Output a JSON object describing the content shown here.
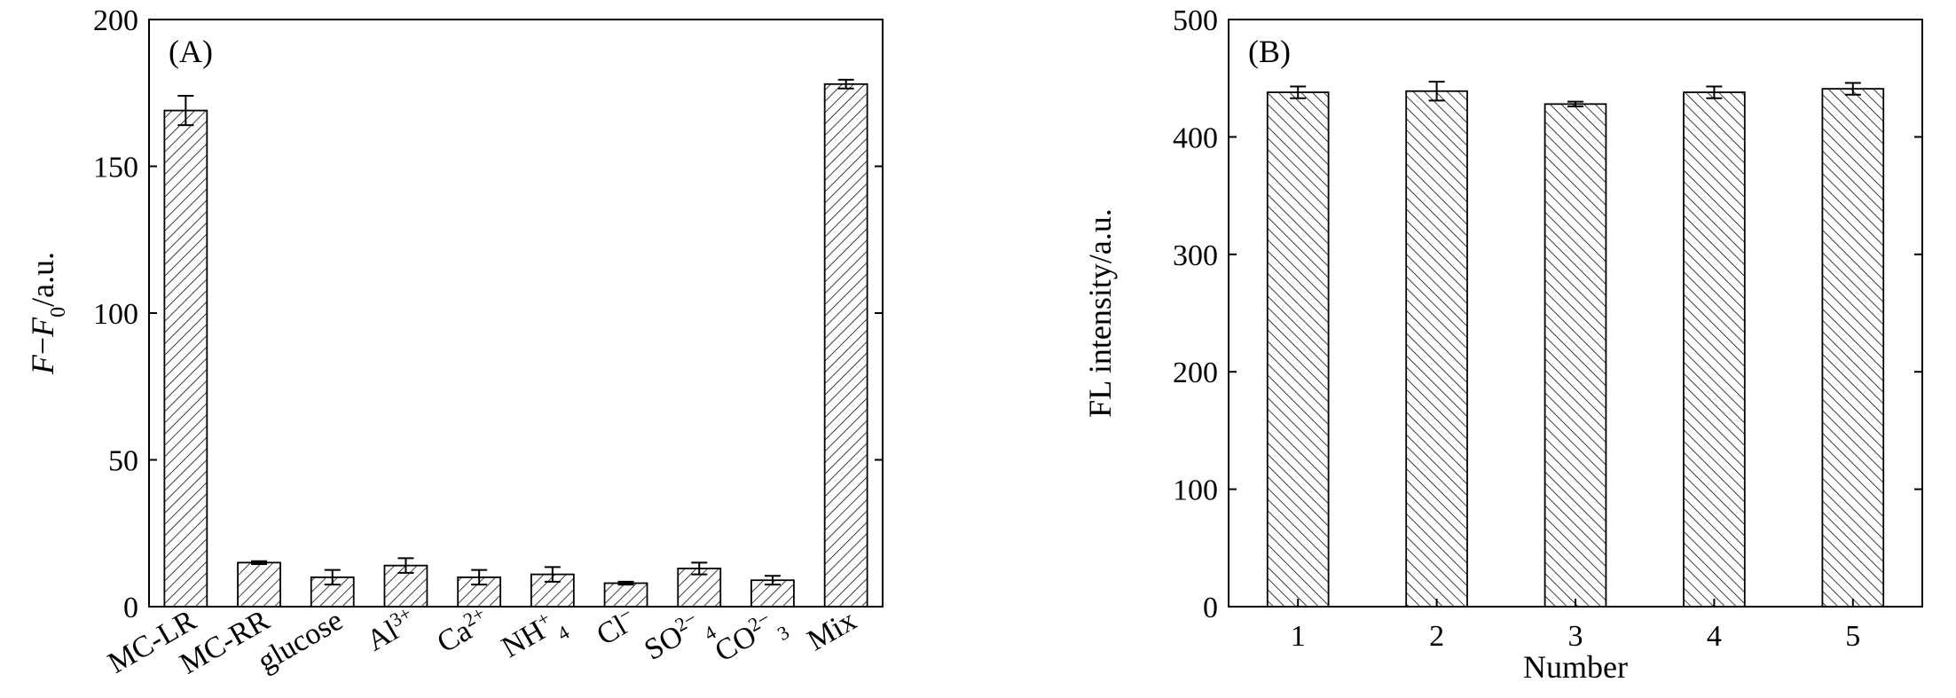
{
  "chart_data": [
    {
      "type": "bar",
      "panel_label": "(A)",
      "ylabel": "F−F0/a.u.",
      "ylim": [
        0,
        200
      ],
      "yticks": [
        "0",
        "50",
        "100",
        "150",
        "200"
      ],
      "categories": [
        "MC-LR",
        "MC-RR",
        "glucose",
        "Al3+",
        "Ca2+",
        "NH4+",
        "Cl−",
        "SO42−",
        "CO32−",
        "Mix"
      ],
      "values": [
        169,
        15,
        10,
        14,
        10,
        11,
        8,
        13,
        9,
        178
      ],
      "errors": [
        5,
        0.5,
        2.5,
        2.5,
        2.5,
        2.5,
        0.5,
        2,
        1.5,
        1.5
      ],
      "hatch": "forward-diagonal",
      "grid": false
    },
    {
      "type": "bar",
      "panel_label": "(B)",
      "xlabel": "Number",
      "ylabel": "FL intensity/a.u.",
      "ylim": [
        0,
        500
      ],
      "yticks": [
        "0",
        "100",
        "200",
        "300",
        "400",
        "500"
      ],
      "categories": [
        "1",
        "2",
        "3",
        "4",
        "5"
      ],
      "values": [
        438,
        439,
        428,
        438,
        441
      ],
      "errors": [
        5,
        8,
        2,
        5,
        5
      ],
      "hatch": "back-diagonal",
      "grid": false
    }
  ]
}
